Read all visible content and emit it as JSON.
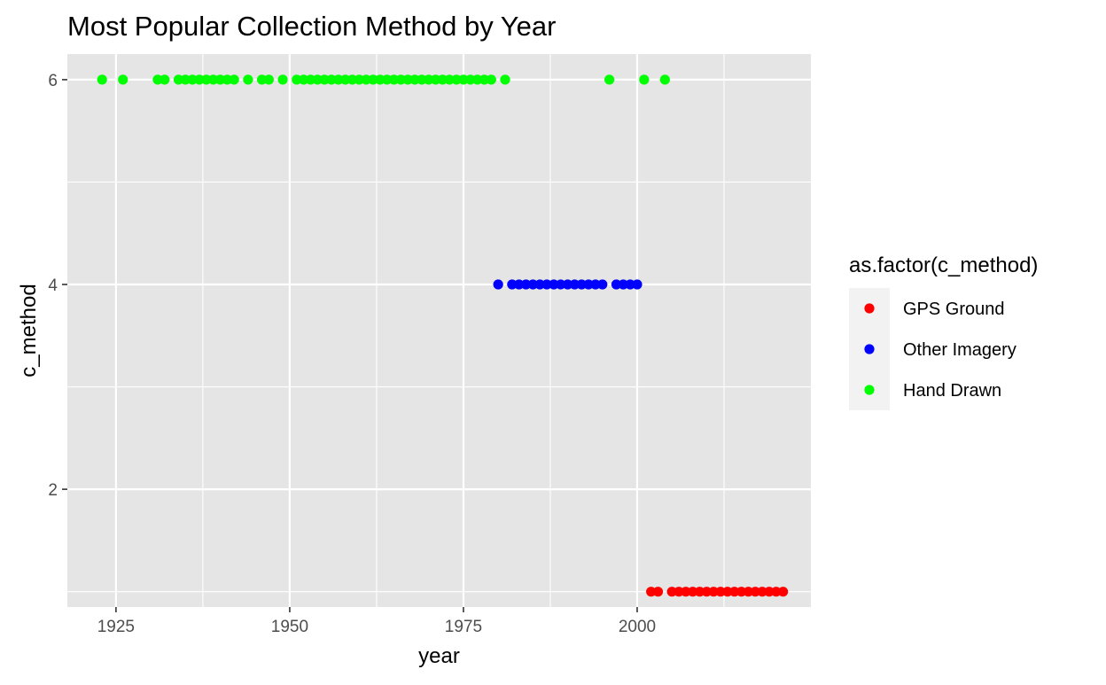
{
  "chart_data": {
    "type": "scatter",
    "title": "Most Popular Collection Method by Year",
    "xlabel": "year",
    "ylabel": "c_method",
    "xlim": [
      1918,
      2025
    ],
    "ylim": [
      0.85,
      6.25
    ],
    "x_ticks": [
      1925,
      1950,
      1975,
      2000
    ],
    "x_tick_labels": [
      "1925",
      "1950",
      "1975",
      "2000"
    ],
    "y_ticks": [
      2,
      4,
      6
    ],
    "y_tick_labels": [
      "2",
      "4",
      "6"
    ],
    "grid": true,
    "panel_background": "#e5e5e5",
    "legend": {
      "title": "as.factor(c_method)",
      "position": "right",
      "entries": [
        "GPS Ground",
        "Other Imagery",
        "Hand Drawn"
      ]
    },
    "series": [
      {
        "name": "GPS Ground",
        "color": "#ff0000",
        "y": 1,
        "x": [
          2002,
          2003,
          2005,
          2006,
          2007,
          2008,
          2009,
          2010,
          2011,
          2012,
          2013,
          2014,
          2015,
          2016,
          2017,
          2018,
          2019,
          2020,
          2021
        ]
      },
      {
        "name": "Other Imagery",
        "color": "#0000ff",
        "y": 4,
        "x": [
          1980,
          1982,
          1983,
          1984,
          1985,
          1986,
          1987,
          1988,
          1989,
          1990,
          1991,
          1992,
          1993,
          1994,
          1995,
          1997,
          1998,
          1999,
          2000
        ]
      },
      {
        "name": "Hand Drawn",
        "color": "#00ff00",
        "y": 6,
        "x": [
          1923,
          1926,
          1931,
          1932,
          1934,
          1935,
          1936,
          1937,
          1938,
          1939,
          1940,
          1941,
          1942,
          1944,
          1946,
          1947,
          1949,
          1951,
          1952,
          1953,
          1954,
          1955,
          1956,
          1957,
          1958,
          1959,
          1960,
          1961,
          1962,
          1963,
          1964,
          1965,
          1966,
          1967,
          1968,
          1969,
          1970,
          1971,
          1972,
          1973,
          1974,
          1975,
          1976,
          1977,
          1978,
          1979,
          1981,
          1996,
          2001,
          2004
        ]
      }
    ]
  }
}
